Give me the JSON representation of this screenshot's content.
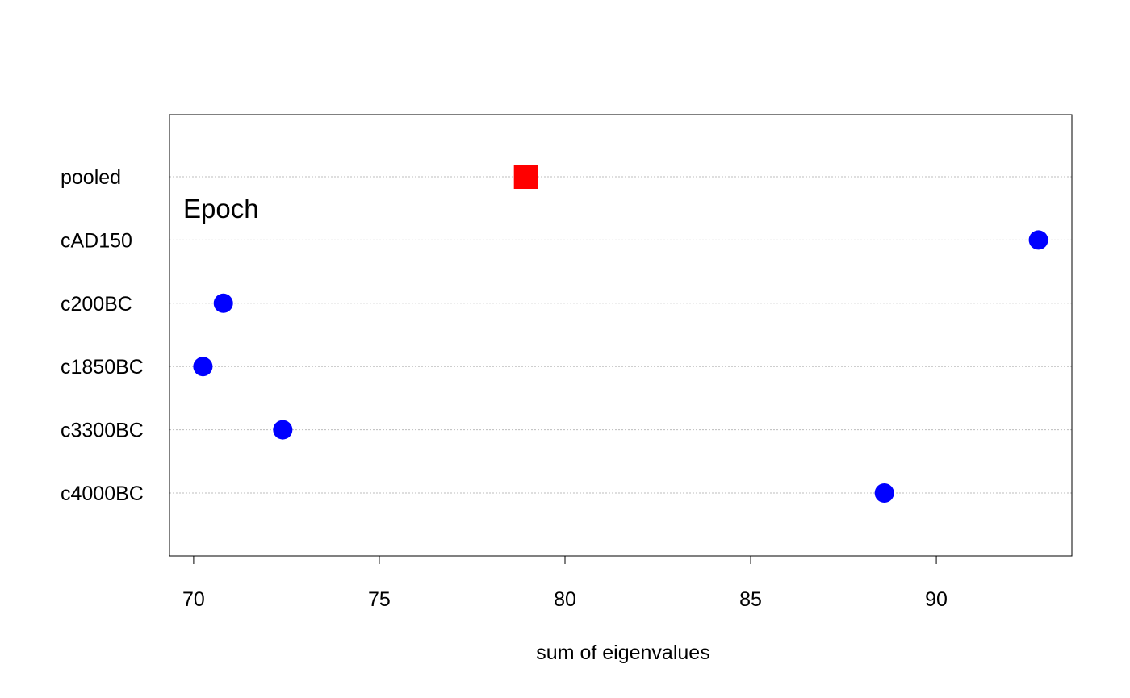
{
  "chart_data": {
    "type": "scatter",
    "title": "",
    "xlabel": "sum of eigenvalues",
    "ylabel": "",
    "group_label": "Epoch",
    "xlim": [
      69.35,
      93.65
    ],
    "xticks": [
      70,
      75,
      80,
      85,
      90
    ],
    "grid": "horizontal dotted",
    "categories": [
      "pooled",
      "cAD150",
      "c200BC",
      "c1850BC",
      "c3300BC",
      "c4000BC"
    ],
    "points": [
      {
        "label": "pooled",
        "value": 78.95,
        "marker": "square",
        "color": "#ff0000"
      },
      {
        "label": "cAD150",
        "value": 92.75,
        "marker": "circle",
        "color": "#0000ff"
      },
      {
        "label": "c200BC",
        "value": 70.8,
        "marker": "circle",
        "color": "#0000ff"
      },
      {
        "label": "c1850BC",
        "value": 70.25,
        "marker": "circle",
        "color": "#0000ff"
      },
      {
        "label": "c3300BC",
        "value": 72.4,
        "marker": "circle",
        "color": "#0000ff"
      },
      {
        "label": "c4000BC",
        "value": 88.6,
        "marker": "circle",
        "color": "#0000ff"
      }
    ]
  }
}
